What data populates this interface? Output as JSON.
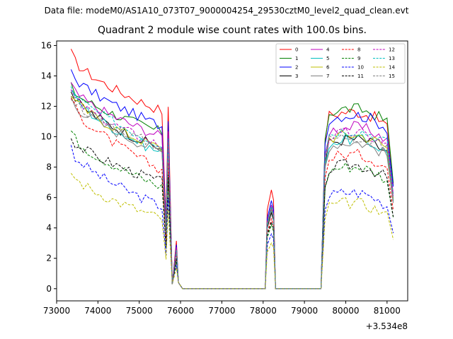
{
  "header": {
    "text": "Data file: modeM0/AS1A10_073T07_9000004254_29530cztM0_level2_quad_clean.evt"
  },
  "chart_data": {
    "type": "line",
    "title": "Quadrant 2 module wise count rates with 100.0s bins.",
    "xlabel": "",
    "ylabel": "",
    "x_offset_label": "+3.534e8",
    "xlim": [
      73000,
      81500
    ],
    "ylim": [
      -0.8,
      16.3
    ],
    "x_ticks": [
      73000,
      74000,
      75000,
      76000,
      77000,
      78000,
      79000,
      80000,
      81000
    ],
    "y_ticks": [
      0,
      2,
      4,
      6,
      8,
      10,
      12,
      14,
      16
    ],
    "grid": false,
    "legend": {
      "placement": "top-right",
      "columns": 4
    },
    "series": [
      {
        "name": "0",
        "color": "#ff0000",
        "dash": "solid",
        "level": 12.6,
        "peak": 15.5,
        "orbit2": 11.4,
        "bump": 6.5
      },
      {
        "name": "1",
        "color": "#008000",
        "dash": "solid",
        "level": 11.2,
        "peak": 13.3,
        "orbit2": 11.6,
        "bump": 5.5
      },
      {
        "name": "2",
        "color": "#0000ff",
        "dash": "solid",
        "level": 11.6,
        "peak": 14.4,
        "orbit2": 11.2,
        "bump": 5.8
      },
      {
        "name": "3",
        "color": "#000000",
        "dash": "solid",
        "level": 10.1,
        "peak": 13.0,
        "orbit2": 9.6,
        "bump": 5.0
      },
      {
        "name": "4",
        "color": "#bf00bf",
        "dash": "solid",
        "level": 10.9,
        "peak": 13.4,
        "orbit2": 10.4,
        "bump": 5.5
      },
      {
        "name": "5",
        "color": "#00bfbf",
        "dash": "solid",
        "level": 9.8,
        "peak": 13.2,
        "orbit2": 9.6,
        "bump": 5.2
      },
      {
        "name": "6",
        "color": "#bfbf00",
        "dash": "solid",
        "level": 10.1,
        "peak": 12.9,
        "orbit2": 9.9,
        "bump": 5.3
      },
      {
        "name": "7",
        "color": "#808080",
        "dash": "solid",
        "level": 9.9,
        "peak": 12.6,
        "orbit2": 9.4,
        "bump": 5.2
      },
      {
        "name": "8",
        "color": "#ff0000",
        "dash": "dashed",
        "level": 8.7,
        "peak": 12.6,
        "orbit2": 8.6,
        "bump": 4.6
      },
      {
        "name": "9",
        "color": "#008000",
        "dash": "dashed",
        "level": 7.6,
        "peak": 10.4,
        "orbit2": 7.8,
        "bump": 4.2
      },
      {
        "name": "10",
        "color": "#0000ff",
        "dash": "dashed",
        "level": 6.3,
        "peak": 9.3,
        "orbit2": 6.1,
        "bump": 3.6
      },
      {
        "name": "11",
        "color": "#000000",
        "dash": "dashed",
        "level": 7.9,
        "peak": 10.0,
        "orbit2": 7.9,
        "bump": 4.4
      },
      {
        "name": "12",
        "color": "#bf00bf",
        "dash": "dashed",
        "level": 10.3,
        "peak": 13.0,
        "orbit2": 10.0,
        "bump": 5.4
      },
      {
        "name": "13",
        "color": "#00bfbf",
        "dash": "dashed",
        "level": 10.4,
        "peak": 13.3,
        "orbit2": 10.2,
        "bump": 5.4
      },
      {
        "name": "14",
        "color": "#bfbf00",
        "dash": "dashed",
        "level": 5.5,
        "peak": 7.7,
        "orbit2": 5.4,
        "bump": 3.0
      },
      {
        "name": "15",
        "color": "#808080",
        "dash": "dashed",
        "level": 10.2,
        "peak": 12.8,
        "orbit2": 9.8,
        "bump": 5.3
      }
    ]
  }
}
